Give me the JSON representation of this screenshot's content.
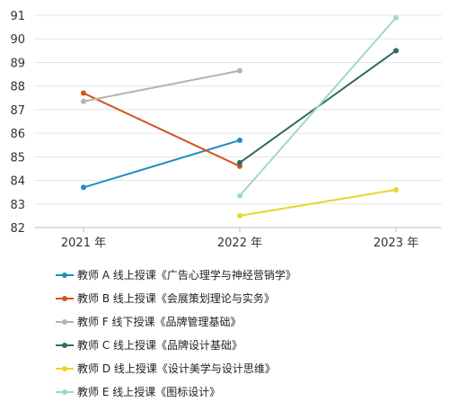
{
  "chart_data": {
    "type": "line",
    "categories": [
      "2021 年",
      "2022 年",
      "2023 年"
    ],
    "ylim": [
      82,
      91
    ],
    "yticks": [
      82,
      83,
      84,
      85,
      86,
      87,
      88,
      89,
      90,
      91
    ],
    "grid": true,
    "legend_position": "bottom",
    "series": [
      {
        "name": "教师 A 线上授课《广告心理学与神经营销学》",
        "color": "#1f8fbf",
        "values": [
          83.7,
          85.7,
          null
        ]
      },
      {
        "name": "教师 B 线上授课《会展策划理论与实务》",
        "color": "#d4541c",
        "values": [
          87.7,
          84.6,
          null
        ]
      },
      {
        "name": "教师 F 线下授课《品牌管理基础》",
        "color": "#b3b3b3",
        "values": [
          87.35,
          88.65,
          null
        ]
      },
      {
        "name": "教师 C 线上授课《品牌设计基础》",
        "color": "#2f6b66",
        "values": [
          null,
          84.75,
          89.5
        ]
      },
      {
        "name": "教师 D 线上授课《设计美学与设计思维》",
        "color": "#ecd52c",
        "values": [
          null,
          82.5,
          83.6
        ]
      },
      {
        "name": "教师 E 线上授课《图标设计》",
        "color": "#9fd8c8",
        "values": [
          null,
          83.35,
          90.9
        ]
      }
    ]
  }
}
